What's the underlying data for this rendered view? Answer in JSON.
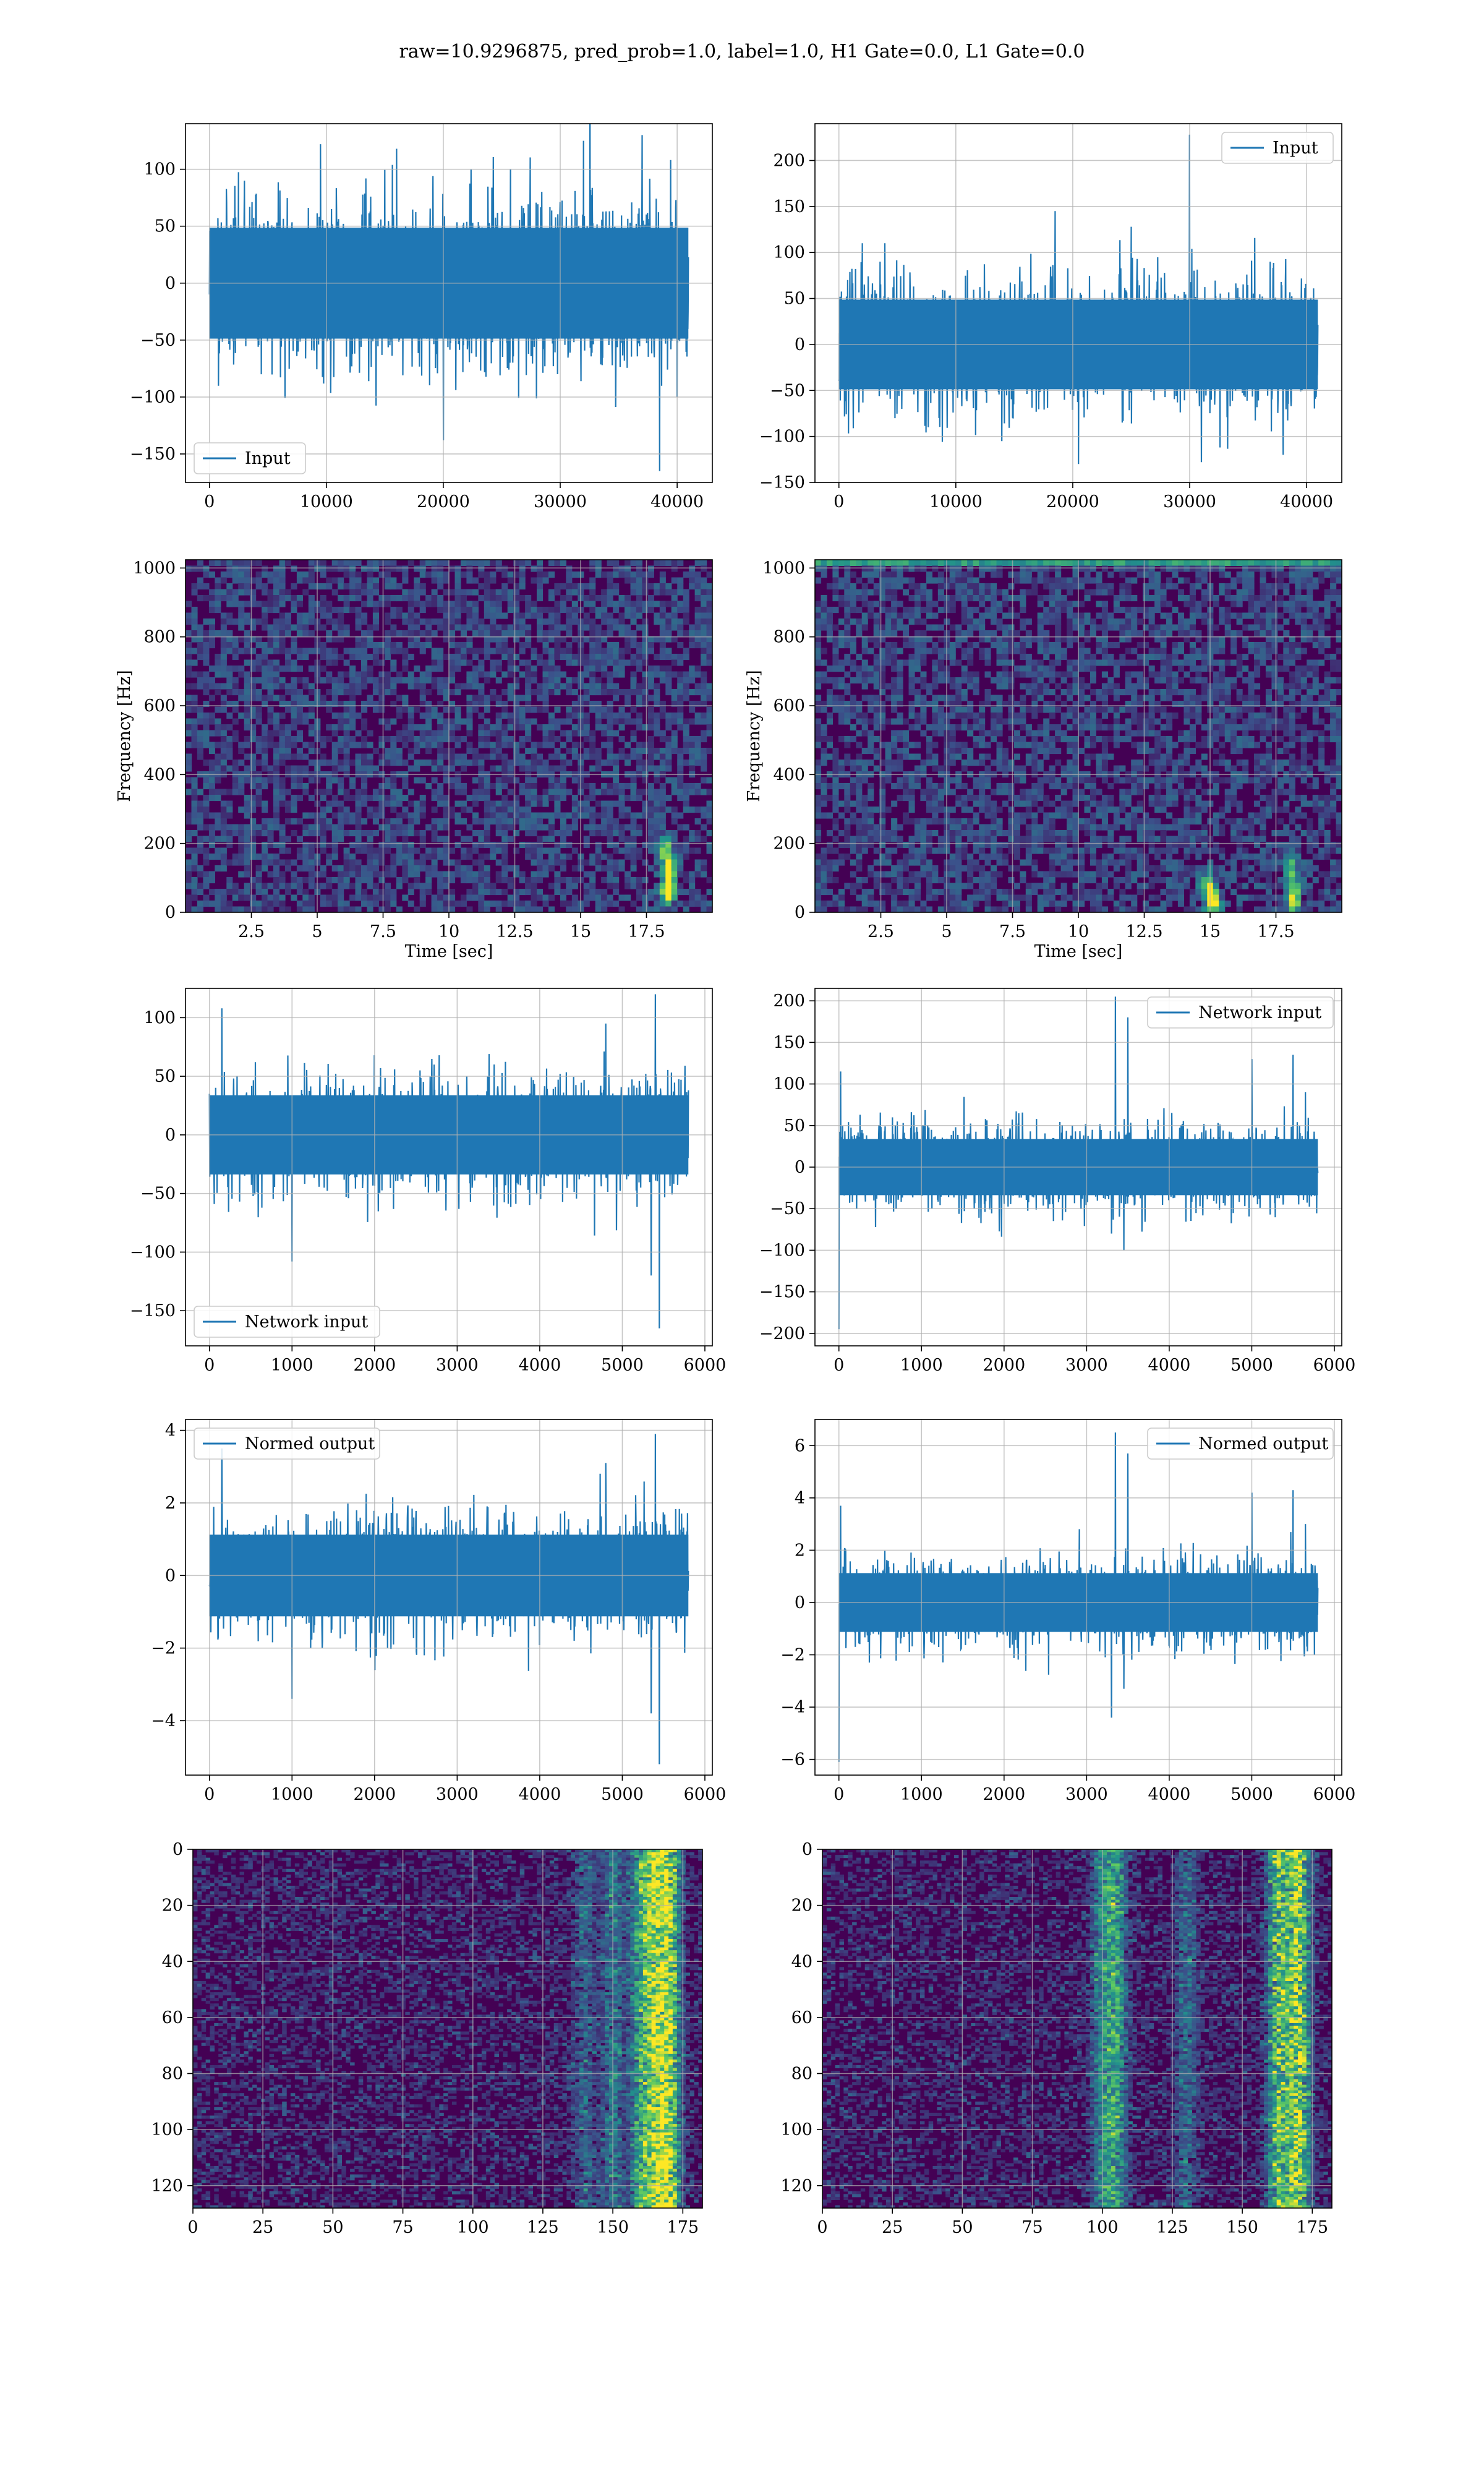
{
  "figure": {
    "suptitle": "raw=10.9296875, pred_prob=1.0, label=1.0, H1 Gate=0.0, L1 Gate=0.0"
  },
  "colors": {
    "line": "#1f77b4",
    "grid": "#b0b0b0",
    "viridis_dark": "#440154",
    "viridis_low": "#3b1b73",
    "viridis_mid": "#21918c",
    "viridis_high": "#5ec962",
    "viridis_top": "#fde725"
  },
  "chart_data": [
    {
      "type": "line",
      "legend": "Input",
      "legend_loc": "lower-left",
      "grid": true,
      "xlim": [
        -2048,
        43008
      ],
      "ylim": [
        -175,
        140
      ],
      "xticks": [
        0,
        10000,
        20000,
        30000,
        40000
      ],
      "yticks": [
        -150,
        -100,
        -50,
        0,
        50,
        100
      ],
      "x_range": [
        0,
        40960
      ],
      "band_half": 65,
      "spikes": [
        [
          3000,
          90
        ],
        [
          9500,
          122
        ],
        [
          16000,
          118
        ],
        [
          20000,
          -138
        ],
        [
          32000,
          125
        ],
        [
          37000,
          130
        ],
        [
          38500,
          -165
        ],
        [
          40000,
          -100
        ]
      ],
      "seed": 11
    },
    {
      "type": "line",
      "legend": "Input",
      "legend_loc": "top-right",
      "grid": true,
      "xlim": [
        -2048,
        43008
      ],
      "ylim": [
        -150,
        240
      ],
      "xticks": [
        0,
        10000,
        20000,
        30000,
        40000
      ],
      "yticks": [
        -150,
        -100,
        -50,
        0,
        50,
        100,
        150,
        200
      ],
      "x_range": [
        0,
        40960
      ],
      "band_half": 65,
      "spikes": [
        [
          30000,
          228
        ],
        [
          18500,
          145
        ],
        [
          25000,
          128
        ],
        [
          2000,
          110
        ],
        [
          20500,
          -130
        ],
        [
          31000,
          -128
        ],
        [
          38000,
          -120
        ]
      ],
      "seed": 23
    },
    {
      "type": "heatmap",
      "xlabel": "Time [sec]",
      "ylabel": "Frequency [Hz]",
      "grid": true,
      "xlim": [
        0,
        20
      ],
      "ylim": [
        0,
        1024
      ],
      "xticks": [
        2.5,
        5.0,
        7.5,
        10.0,
        12.5,
        15.0,
        17.5
      ],
      "ytick_labels": [
        "0",
        "200",
        "400",
        "600",
        "800",
        "1000"
      ],
      "yticks": [
        0,
        200,
        400,
        600,
        800,
        1000
      ],
      "hot_spots": [
        [
          18.3,
          60,
          0.95
        ],
        [
          18.4,
          120,
          0.8
        ],
        [
          18.2,
          180,
          0.7
        ]
      ],
      "top_band": false,
      "seed": 37
    },
    {
      "type": "heatmap",
      "xlabel": "Time [sec]",
      "ylabel": "Frequency [Hz]",
      "grid": true,
      "xlim": [
        0,
        20
      ],
      "ylim": [
        0,
        1024
      ],
      "xticks": [
        2.5,
        5.0,
        7.5,
        10.0,
        12.5,
        15.0,
        17.5
      ],
      "ytick_labels": [
        "0",
        "200",
        "400",
        "600",
        "800",
        "1000"
      ],
      "yticks": [
        0,
        200,
        400,
        600,
        800,
        1000
      ],
      "hot_spots": [
        [
          15.1,
          30,
          1.0
        ],
        [
          14.9,
          80,
          0.7
        ],
        [
          18.2,
          40,
          0.8
        ],
        [
          18.1,
          120,
          0.6
        ]
      ],
      "top_band": true,
      "seed": 41
    },
    {
      "type": "line",
      "legend": "Network input",
      "legend_loc": "lower-left",
      "grid": true,
      "xlim": [
        -290,
        6090
      ],
      "ylim": [
        -180,
        125
      ],
      "xticks": [
        0,
        1000,
        2000,
        3000,
        4000,
        5000,
        6000
      ],
      "yticks": [
        -150,
        -100,
        -50,
        0,
        50,
        100
      ],
      "x_range": [
        0,
        5800
      ],
      "band_half": 45,
      "spikes": [
        [
          150,
          108
        ],
        [
          1000,
          -108
        ],
        [
          5400,
          120
        ],
        [
          5450,
          -165
        ],
        [
          5350,
          -120
        ],
        [
          4800,
          95
        ]
      ],
      "seed": 53
    },
    {
      "type": "line",
      "legend": "Network input",
      "legend_loc": "top-right",
      "grid": true,
      "xlim": [
        -290,
        6090
      ],
      "ylim": [
        -215,
        215
      ],
      "xticks": [
        0,
        1000,
        2000,
        3000,
        4000,
        5000,
        6000
      ],
      "yticks": [
        -200,
        -150,
        -100,
        -50,
        0,
        50,
        100,
        150,
        200
      ],
      "x_range": [
        0,
        5800
      ],
      "band_half": 45,
      "spikes": [
        [
          3350,
          205
        ],
        [
          3500,
          180
        ],
        [
          3300,
          -80
        ],
        [
          3450,
          -100
        ],
        [
          0,
          -195
        ],
        [
          20,
          115
        ],
        [
          5000,
          130
        ],
        [
          5500,
          135
        ],
        [
          5650,
          90
        ]
      ],
      "seed": 67
    },
    {
      "type": "line",
      "legend": "Normed output",
      "legend_loc": "top-left",
      "grid": true,
      "xlim": [
        -290,
        6090
      ],
      "ylim": [
        -5.5,
        4.3
      ],
      "xticks": [
        0,
        1000,
        2000,
        3000,
        4000,
        5000,
        6000
      ],
      "yticks": [
        -4,
        -2,
        0,
        2,
        4
      ],
      "x_range": [
        0,
        5800
      ],
      "band_half": 1.5,
      "spikes": [
        [
          150,
          3.5
        ],
        [
          1000,
          -3.4
        ],
        [
          5400,
          3.9
        ],
        [
          5450,
          -5.2
        ],
        [
          5350,
          -3.8
        ],
        [
          4800,
          3.1
        ]
      ],
      "seed": 71
    },
    {
      "type": "line",
      "legend": "Normed output",
      "legend_loc": "top-right",
      "grid": true,
      "xlim": [
        -290,
        6090
      ],
      "ylim": [
        -6.6,
        7.0
      ],
      "xticks": [
        0,
        1000,
        2000,
        3000,
        4000,
        5000,
        6000
      ],
      "yticks": [
        -6,
        -4,
        -2,
        0,
        2,
        4,
        6
      ],
      "x_range": [
        0,
        5800
      ],
      "band_half": 1.5,
      "spikes": [
        [
          3350,
          6.5
        ],
        [
          3500,
          5.7
        ],
        [
          3300,
          -4.4
        ],
        [
          3450,
          -3.3
        ],
        [
          0,
          -6.1
        ],
        [
          20,
          3.7
        ],
        [
          5000,
          4.2
        ],
        [
          5500,
          4.3
        ],
        [
          5650,
          3.0
        ]
      ],
      "seed": 83
    },
    {
      "type": "heatmap",
      "grid": true,
      "xlim": [
        0,
        182
      ],
      "ylim": [
        128,
        0
      ],
      "xticks": [
        0,
        25,
        50,
        75,
        100,
        125,
        150,
        175
      ],
      "yticks": [
        0,
        20,
        40,
        60,
        80,
        100,
        120
      ],
      "hot_columns": [
        [
          170,
          0.9
        ],
        [
          165,
          0.7
        ],
        [
          160,
          0.55
        ],
        [
          150,
          0.35
        ],
        [
          140,
          0.25
        ]
      ],
      "seed": 97
    },
    {
      "type": "heatmap",
      "grid": true,
      "xlim": [
        0,
        182
      ],
      "ylim": [
        128,
        0
      ],
      "xticks": [
        0,
        25,
        50,
        75,
        100,
        125,
        150,
        175
      ],
      "yticks": [
        0,
        20,
        40,
        60,
        80,
        100,
        120
      ],
      "hot_columns": [
        [
          170,
          0.95
        ],
        [
          163,
          0.75
        ],
        [
          105,
          0.5
        ],
        [
          100,
          0.4
        ],
        [
          130,
          0.3
        ]
      ],
      "seed": 101
    }
  ]
}
